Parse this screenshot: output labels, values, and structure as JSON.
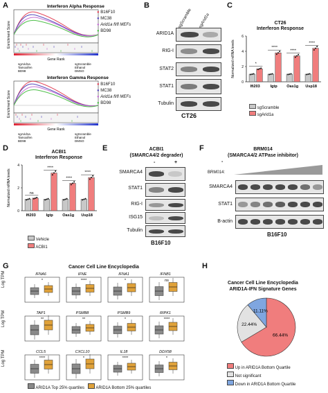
{
  "panels": {
    "A": {
      "label": "A",
      "plots": [
        {
          "title": "Interferon Alpha Response",
          "yaxis": "Enrichment Score",
          "xaxis": "Gene Rank",
          "left": [
            "sgArid1a",
            "Tamoxifen",
            "BD98"
          ],
          "right": [
            "sgScramble",
            "Ethanol",
            "DMSO"
          ]
        },
        {
          "title": "Interferon Gamma Response",
          "yaxis": "Enrichment Score",
          "xaxis": "Gene Rank",
          "left": [
            "sgArid1a",
            "Tamoxifen",
            "BD98"
          ],
          "right": [
            "sgScramble",
            "Ethanol",
            "DMSO"
          ]
        }
      ],
      "legend": [
        {
          "name": "B16F10",
          "color": "#e3455a"
        },
        {
          "name": "MC38",
          "color": "#5a4bbd"
        },
        {
          "name": "Arid1a fl/fl MEFs",
          "color": "#c46fd4"
        },
        {
          "name": "BD98",
          "color": "#4fbf4a"
        }
      ]
    },
    "B": {
      "label": "B",
      "lanes": [
        "sgScramble",
        "sgArid1a"
      ],
      "rows": [
        "ARID1A",
        "RIG-I",
        "STAT2",
        "STAT1",
        "Tubulin"
      ],
      "caption": "CT26"
    },
    "C": {
      "label": "C",
      "title": "CT26",
      "subtitle": "Interferon Response",
      "ylabel": "Normalized mRNA levels",
      "sig": [
        "*",
        "****",
        "****",
        "****"
      ],
      "legend": [
        {
          "name": "sgScramble",
          "color": "#c8c8c8"
        },
        {
          "name": "sgArid1a",
          "color": "#f07d7d"
        }
      ]
    },
    "D": {
      "label": "D",
      "title": "ACBI1",
      "subtitle": "Interferon Response",
      "ylabel": "Normalized mRNA levels",
      "sig": [
        "ns",
        "****",
        "****",
        "****"
      ],
      "legend": [
        {
          "name": "Vehicle",
          "color": "#c8c8c8"
        },
        {
          "name": "ACBI1",
          "color": "#f07d7d"
        }
      ]
    },
    "E": {
      "label": "E",
      "title": "ACBI1",
      "subtitle": "(SMARCA4/2 degrader)",
      "lanes": [
        "-",
        "+"
      ],
      "rows": [
        "SMARCA4",
        "STAT1",
        "RIG-I",
        "ISG15",
        "Tubulin"
      ],
      "caption": "B16F10"
    },
    "F": {
      "label": "F",
      "title": "BRM014",
      "subtitle": "(SMARCA4/2 ATPase inhibitor)",
      "treat": "BRM014:",
      "dash": "-",
      "rows": [
        "SMARCA4",
        "STAT1",
        "B-actin"
      ],
      "caption": "B16F10"
    },
    "G": {
      "label": "G",
      "title": "Cancer Cell Line Encyclopedia",
      "ylabel": "Log TPM",
      "genes": [
        [
          "IFNA6",
          "IFNE",
          "IFNA1",
          "IFNB1"
        ],
        [
          "TAP1",
          "PSMB8",
          "PSMB9",
          "RIPK1"
        ],
        [
          "CCL5",
          "CXCL10",
          "IL18",
          "DDX58"
        ]
      ],
      "sig": [
        [
          "*",
          "****",
          "*",
          "ns"
        ],
        [
          "**",
          "**",
          "*",
          "****"
        ],
        [
          "****",
          "*",
          "****",
          "*"
        ]
      ],
      "legend": [
        {
          "name": "ARID1A Top 25% quartiles",
          "color": "#8a8a8a"
        },
        {
          "name": "ARID1A Bottom 25% quartiles",
          "color": "#e0a23a"
        }
      ]
    },
    "H": {
      "label": "H",
      "title": "Cancer Cell Line Encyclopedia",
      "subtitle": "ARID1A-IFN Signature Genes",
      "slices": [
        {
          "label": "66.44%",
          "value": 66.44,
          "color": "#f07d7d",
          "legend": "Up in ARID1A Bottom Quartile"
        },
        {
          "label": "22.44%",
          "value": 22.44,
          "color": "#e2e2e2",
          "legend": "Not significant"
        },
        {
          "label": "11.11%",
          "value": 11.11,
          "color": "#7fa6e0",
          "legend": "Down in ARID1A Bottom Quartile"
        }
      ]
    }
  },
  "chart_data": [
    {
      "type": "bar",
      "title": "CT26",
      "subtitle": "Interferon Response",
      "ylabel": "Normalized mRNA levels",
      "ylim": [
        0,
        6
      ],
      "categories": [
        "Ifi203",
        "Igtp",
        "Oas1g",
        "Usp18"
      ],
      "series": [
        {
          "name": "sgScramble",
          "values": [
            1,
            1,
            1,
            1
          ]
        },
        {
          "name": "sgArid1a",
          "values": [
            1.7,
            3.8,
            3.4,
            4.4
          ]
        }
      ]
    },
    {
      "type": "bar",
      "title": "ACBI1",
      "subtitle": "Interferon Response",
      "ylabel": "Normalized mRNA levels",
      "ylim": [
        0,
        4
      ],
      "categories": [
        "Ifi203",
        "Igtp",
        "Oas1g",
        "Usp18"
      ],
      "series": [
        {
          "name": "Vehicle",
          "values": [
            1,
            1,
            1,
            1
          ]
        },
        {
          "name": "ACBI1",
          "values": [
            1.1,
            3.3,
            2.4,
            2.9
          ]
        }
      ]
    },
    {
      "type": "pie",
      "title": "Cancer Cell Line Encyclopedia",
      "subtitle": "ARID1A-IFN Signature Genes",
      "categories": [
        "Up in ARID1A Bottom Quartile",
        "Not significant",
        "Down in ARID1A Bottom Quartile"
      ],
      "values": [
        66.44,
        22.44,
        11.11
      ]
    }
  ]
}
